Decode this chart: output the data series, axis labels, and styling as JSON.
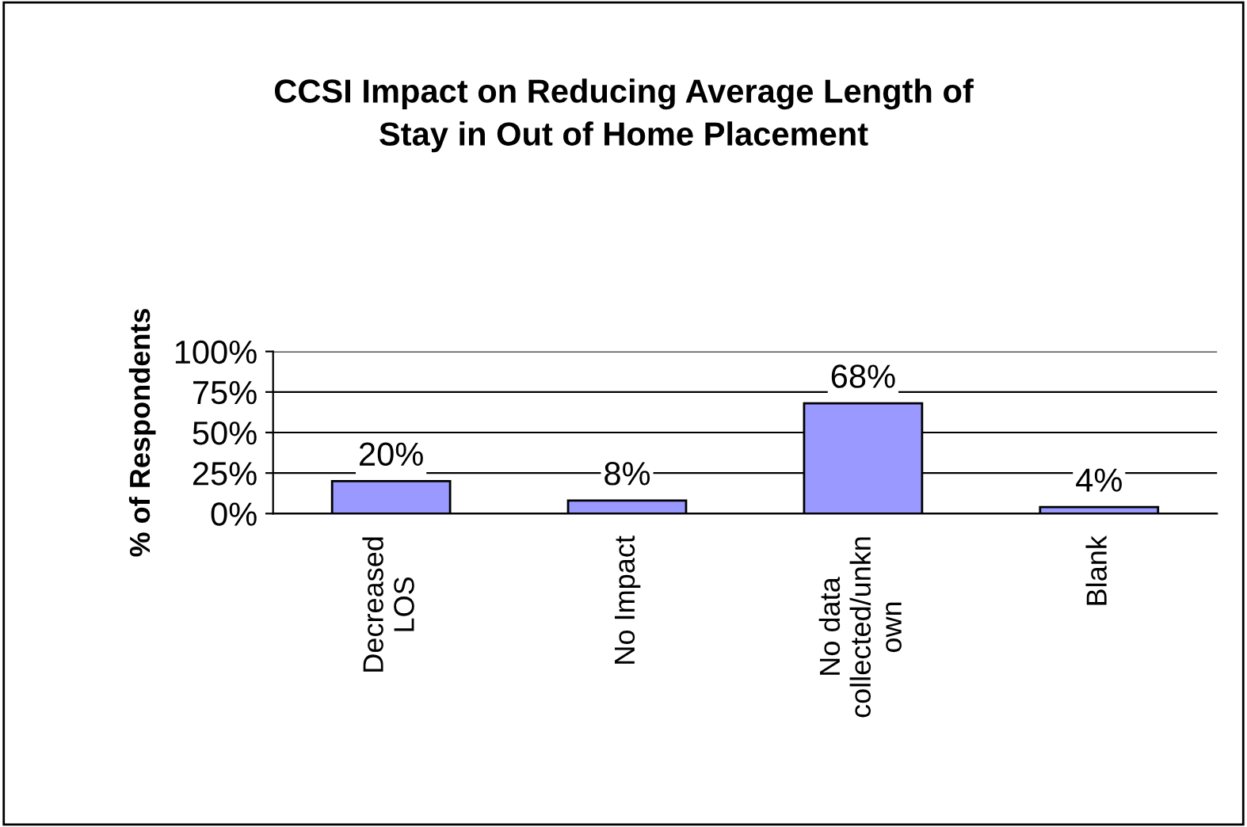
{
  "chart_data": {
    "type": "bar",
    "title": "CCSI Impact on Reducing Average Length of\nStay in Out of Home Placement",
    "ylabel": "% of Respondents",
    "categories": [
      "Decreased\nLOS",
      "No Impact",
      "No data\ncollected/unkn\nown",
      "Blank"
    ],
    "values": [
      20,
      8,
      68,
      4
    ],
    "color": "#9999ff",
    "data_labels": true,
    "value_labels": [
      "20%",
      "8%",
      "68%",
      "4%"
    ],
    "ylim": [
      0,
      100
    ],
    "yticks": [
      {
        "value": 0,
        "label": "0%"
      },
      {
        "value": 25,
        "label": "25%"
      },
      {
        "value": 50,
        "label": "50%"
      },
      {
        "value": 75,
        "label": "75%"
      },
      {
        "value": 100,
        "label": "100%"
      }
    ],
    "grid": "y"
  }
}
